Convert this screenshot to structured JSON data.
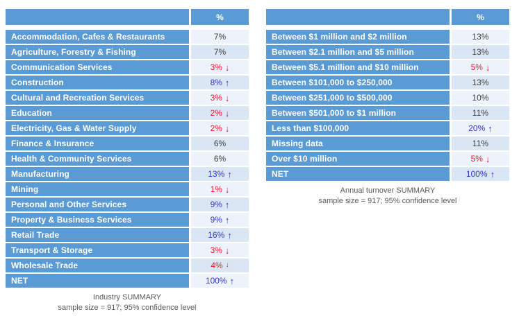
{
  "colors": {
    "table_blue": "#5b9bd5",
    "row_light": "#edf3fb",
    "row_dark": "#dae6f4",
    "neutral": "#404040",
    "up": "#3333cc",
    "down": "#e8192c",
    "caption": "#595959"
  },
  "glyphs": {
    "up": "↑",
    "down": "↓",
    "down-small": "↓"
  },
  "tables": [
    {
      "name": "Industry",
      "percent_header": "%",
      "caption": {
        "line1": "Industry SUMMARY",
        "line2": "sample size = 917; 95% confidence level"
      },
      "rows": [
        {
          "label": "Accommodation, Cafes & Restaurants",
          "value": "7%",
          "trend": null
        },
        {
          "label": "Agriculture, Forestry & Fishing",
          "value": "7%",
          "trend": null
        },
        {
          "label": "Communication Services",
          "value": "3%",
          "trend": "down"
        },
        {
          "label": "Construction",
          "value": "8%",
          "trend": "up"
        },
        {
          "label": "Cultural and Recreation Services",
          "value": "3%",
          "trend": "down"
        },
        {
          "label": "Education",
          "value": "2%",
          "trend": "down"
        },
        {
          "label": "Electricity, Gas & Water Supply",
          "value": "2%",
          "trend": "down"
        },
        {
          "label": "Finance & Insurance",
          "value": "6%",
          "trend": null
        },
        {
          "label": "Health & Community Services",
          "value": "6%",
          "trend": null
        },
        {
          "label": "Manufacturing",
          "value": "13%",
          "trend": "up"
        },
        {
          "label": "Mining",
          "value": "1%",
          "trend": "down"
        },
        {
          "label": "Personal and Other Services",
          "value": "9%",
          "trend": "up"
        },
        {
          "label": "Property & Business Services",
          "value": "9%",
          "trend": "up"
        },
        {
          "label": "Retail Trade",
          "value": "16%",
          "trend": "up"
        },
        {
          "label": "Transport & Storage",
          "value": "3%",
          "trend": "down"
        },
        {
          "label": "Wholesale Trade",
          "value": "4%",
          "trend": "down-small"
        },
        {
          "label": "NET",
          "value": "100%",
          "trend": "up"
        }
      ]
    },
    {
      "name": "Annual turnover",
      "percent_header": "%",
      "caption": {
        "line1": "Annual turnover SUMMARY",
        "line2": "sample size = 917; 95% confidence level"
      },
      "rows": [
        {
          "label": "Between $1 million and $2 million",
          "value": "13%",
          "trend": null
        },
        {
          "label": "Between $2.1 million and $5 million",
          "value": "13%",
          "trend": null
        },
        {
          "label": "Between $5.1 million and $10 million",
          "value": "5%",
          "trend": "down"
        },
        {
          "label": "Between $101,000 to $250,000",
          "value": "13%",
          "trend": null
        },
        {
          "label": "Between $251,000 to $500,000",
          "value": "10%",
          "trend": null
        },
        {
          "label": "Between $501,000 to $1 million",
          "value": "11%",
          "trend": null
        },
        {
          "label": "Less than $100,000",
          "value": "20%",
          "trend": "up"
        },
        {
          "label": "Missing data",
          "value": "11%",
          "trend": null
        },
        {
          "label": "Over $10 million",
          "value": "5%",
          "trend": "down"
        },
        {
          "label": "NET",
          "value": "100%",
          "trend": "up"
        }
      ]
    }
  ],
  "chart_data": [
    {
      "type": "table",
      "title": "Industry SUMMARY",
      "subtitle": "sample size = 917; 95% confidence level",
      "columns": [
        "Industry",
        "%"
      ],
      "categories": [
        "Accommodation, Cafes & Restaurants",
        "Agriculture, Forestry & Fishing",
        "Communication Services",
        "Construction",
        "Cultural and Recreation Services",
        "Education",
        "Electricity, Gas & Water Supply",
        "Finance & Insurance",
        "Health & Community Services",
        "Manufacturing",
        "Mining",
        "Personal and Other Services",
        "Property & Business Services",
        "Retail Trade",
        "Transport & Storage",
        "Wholesale Trade",
        "NET"
      ],
      "values": [
        7,
        7,
        3,
        8,
        3,
        2,
        2,
        6,
        6,
        13,
        1,
        9,
        9,
        16,
        3,
        4,
        100
      ],
      "trends": [
        null,
        null,
        "down",
        "up",
        "down",
        "down",
        "down",
        null,
        null,
        "up",
        "down",
        "up",
        "up",
        "up",
        "down",
        "down",
        "up"
      ],
      "sample_size": 917,
      "confidence_level": "95%"
    },
    {
      "type": "table",
      "title": "Annual turnover SUMMARY",
      "subtitle": "sample size = 917; 95% confidence level",
      "columns": [
        "Annual turnover",
        "%"
      ],
      "categories": [
        "Between $1 million and $2 million",
        "Between $2.1 million and $5 million",
        "Between $5.1 million and $10 million",
        "Between $101,000 to $250,000",
        "Between $251,000 to $500,000",
        "Between $501,000 to $1 million",
        "Less than $100,000",
        "Missing data",
        "Over $10 million",
        "NET"
      ],
      "values": [
        13,
        13,
        5,
        13,
        10,
        11,
        20,
        11,
        5,
        100
      ],
      "trends": [
        null,
        null,
        "down",
        null,
        null,
        null,
        "up",
        null,
        "down",
        "up"
      ],
      "sample_size": 917,
      "confidence_level": "95%"
    }
  ]
}
